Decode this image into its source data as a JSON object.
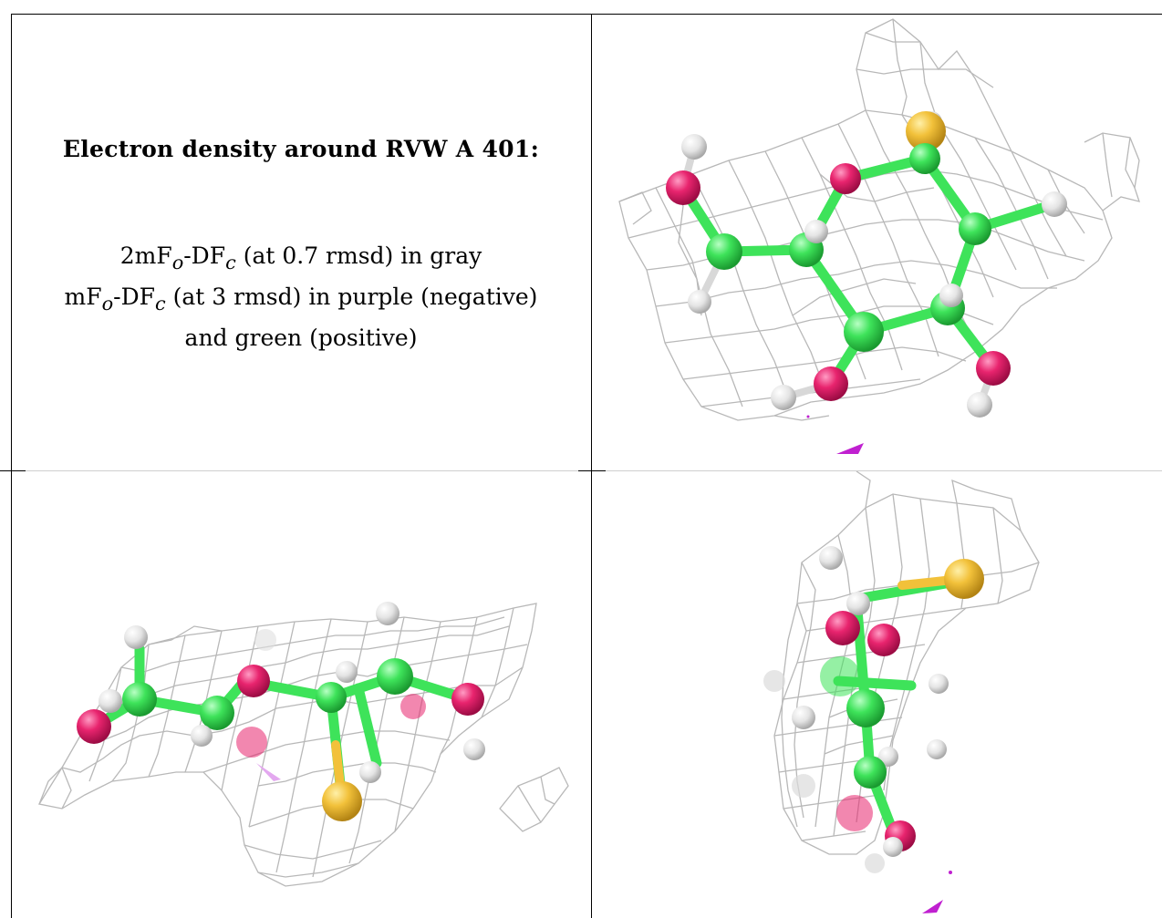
{
  "panel_text": {
    "title": "Electron density around RVW A 401:",
    "line1_prefix": "2mF",
    "line1_sub1": "o",
    "line1_mid": "-DF",
    "line1_sub2": "c",
    "line1_suffix": " (at 0.7 rmsd) in gray",
    "line2_prefix": "mF",
    "line2_sub1": "o",
    "line2_mid": "-DF",
    "line2_sub2": "c",
    "line2_suffix": " (at 3 rmsd) in purple (negative)",
    "line3": "and green (positive)"
  },
  "views": [
    {
      "name": "view-top-right",
      "orientation": "face-on ring"
    },
    {
      "name": "view-bottom-left",
      "orientation": "side view"
    },
    {
      "name": "view-bottom-right",
      "orientation": "edge-on view"
    }
  ],
  "colors": {
    "mesh": "#b8b8b8",
    "carbon": "#3ee35a",
    "oxygen": "#e8246e",
    "hydrogen": "#e6e6e6",
    "sulfur": "#f2c13a",
    "negative_density": "#c020d0",
    "border": "#000000"
  }
}
